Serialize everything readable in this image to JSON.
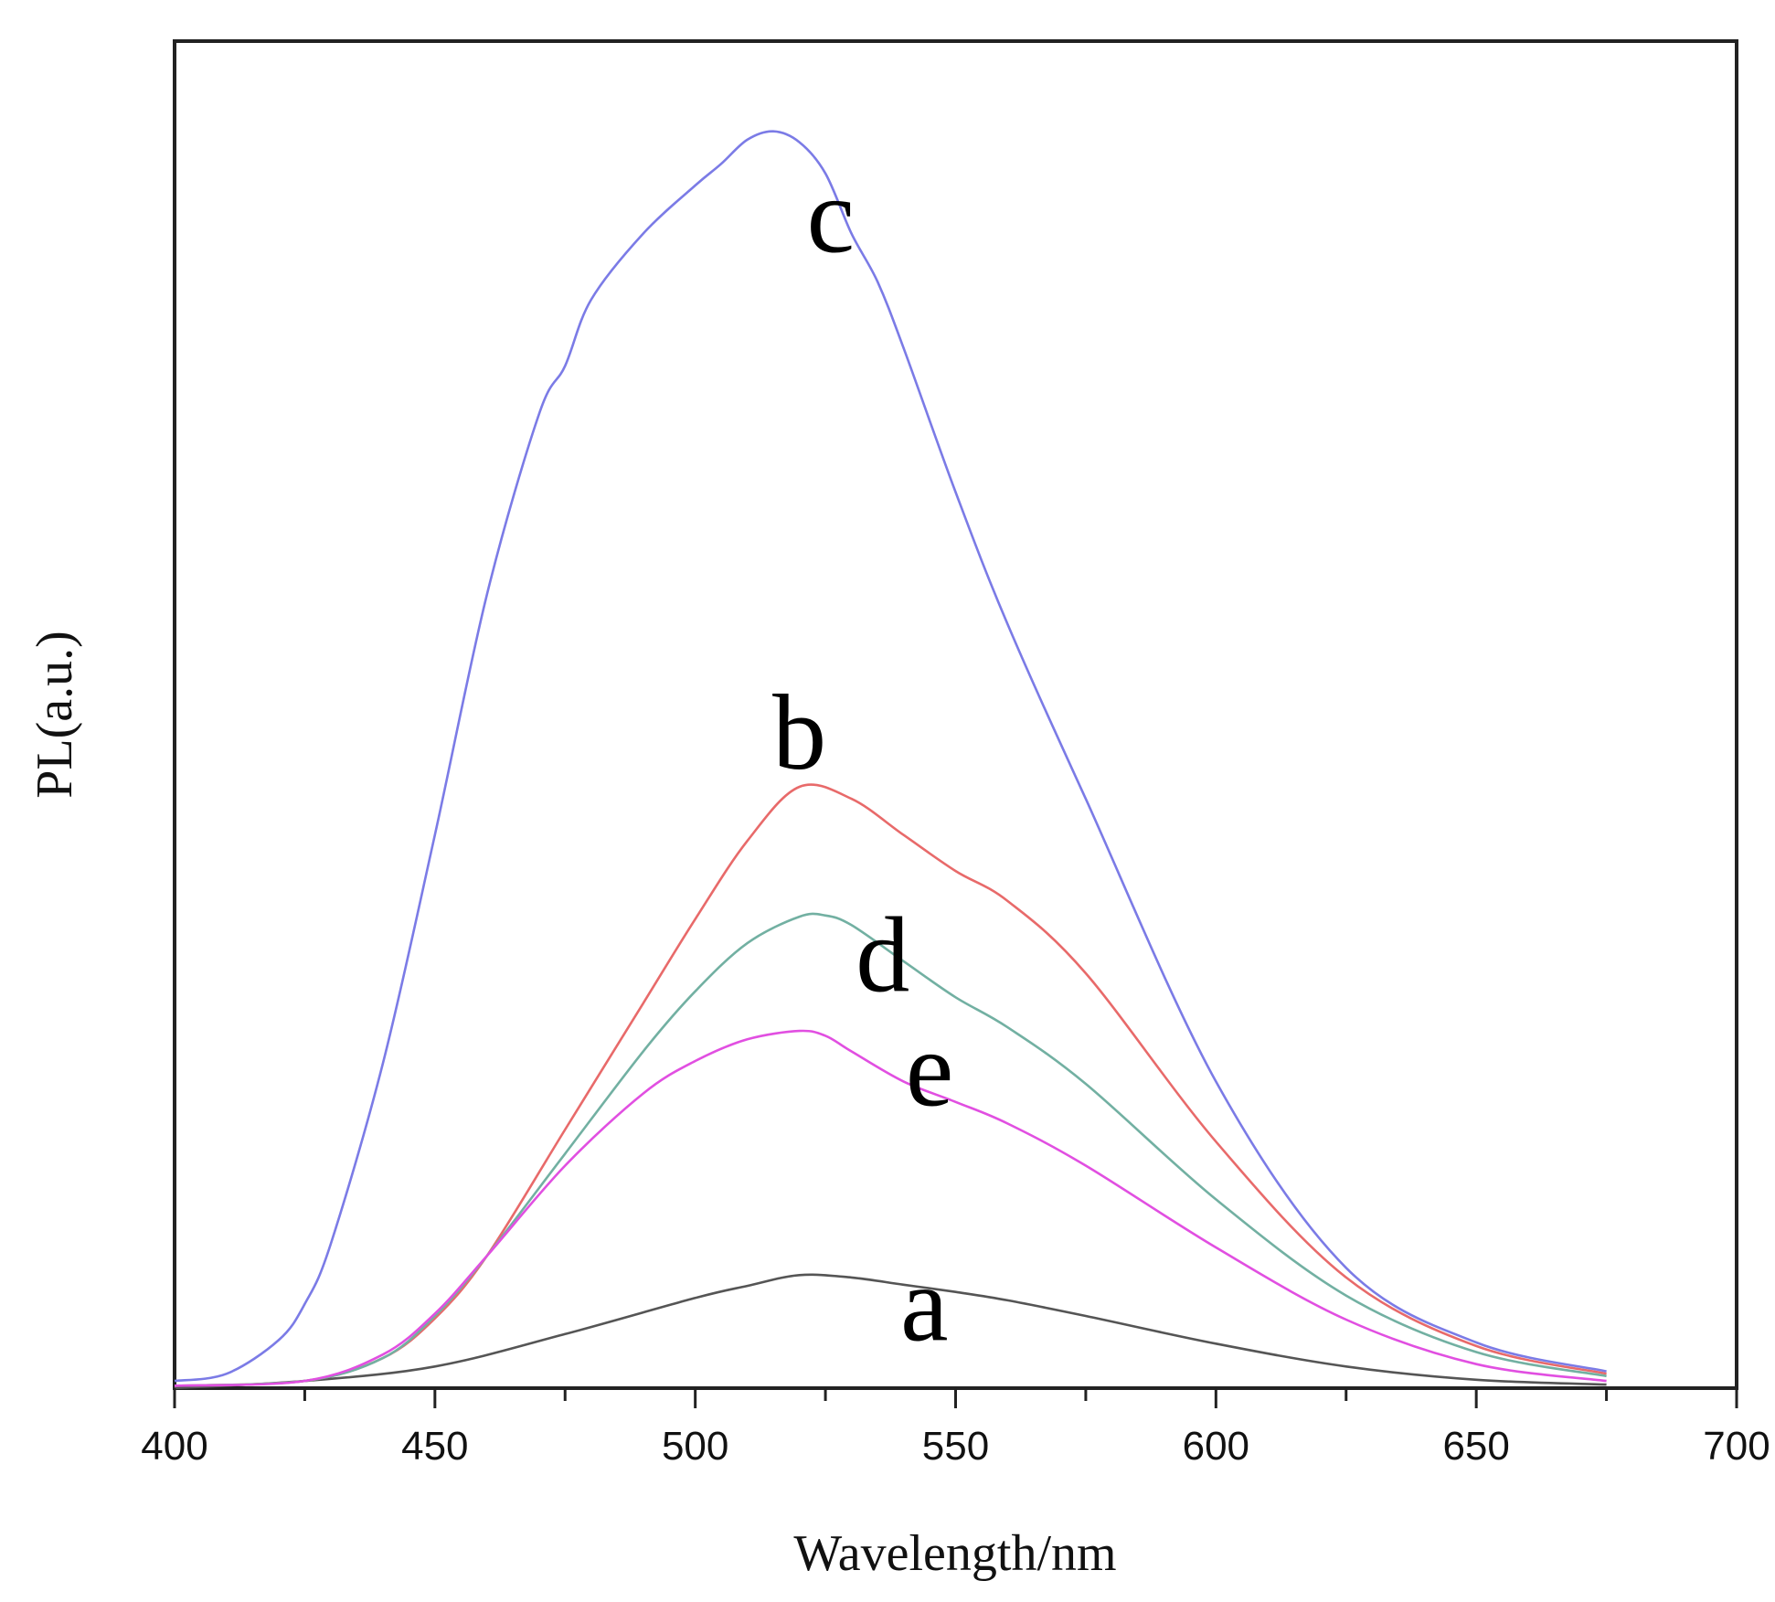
{
  "chart_data": {
    "type": "line",
    "title": "",
    "xlabel": "Wavelength/nm",
    "ylabel": "PL(a.u.)",
    "xlim": [
      400,
      700
    ],
    "ylim": [
      0,
      1.12
    ],
    "x_ticks": [
      400,
      450,
      500,
      550,
      600,
      650,
      700
    ],
    "x_minor_ticks": [
      425,
      475,
      525,
      575,
      625,
      675
    ],
    "y_ticks_shown": false,
    "grid": false,
    "legend": "none",
    "series": [
      {
        "name": "a",
        "color": "#555555",
        "x": [
          400,
          425,
          450,
          475,
          500,
          510,
          520,
          530,
          540,
          550,
          560,
          575,
          600,
          625,
          650,
          675
        ],
        "y": [
          0.0,
          0.006,
          0.018,
          0.045,
          0.075,
          0.085,
          0.094,
          0.092,
          0.086,
          0.08,
          0.073,
          0.06,
          0.037,
          0.018,
          0.007,
          0.003
        ]
      },
      {
        "name": "b",
        "color": "#e86a6a",
        "x": [
          400,
          425,
          440,
          450,
          460,
          475,
          490,
          500,
          510,
          520,
          530,
          540,
          550,
          560,
          575,
          600,
          625,
          650,
          675
        ],
        "y": [
          0.002,
          0.006,
          0.025,
          0.058,
          0.11,
          0.215,
          0.32,
          0.39,
          0.455,
          0.5,
          0.49,
          0.46,
          0.43,
          0.405,
          0.345,
          0.205,
          0.092,
          0.035,
          0.012
        ]
      },
      {
        "name": "c",
        "color": "#7b7be6",
        "x": [
          400,
          410,
          420,
          425,
          430,
          440,
          450,
          460,
          470,
          475,
          480,
          490,
          500,
          505,
          510,
          515,
          520,
          525,
          530,
          535,
          540,
          550,
          560,
          575,
          600,
          625,
          650,
          675
        ],
        "y": [
          0.006,
          0.012,
          0.04,
          0.07,
          0.12,
          0.27,
          0.46,
          0.66,
          0.81,
          0.85,
          0.905,
          0.96,
          1.0,
          1.018,
          1.038,
          1.045,
          1.036,
          1.01,
          0.96,
          0.92,
          0.865,
          0.745,
          0.635,
          0.49,
          0.255,
          0.1,
          0.038,
          0.014
        ]
      },
      {
        "name": "d",
        "color": "#72b0a2",
        "x": [
          400,
          425,
          440,
          450,
          460,
          475,
          490,
          500,
          510,
          520,
          525,
          530,
          540,
          550,
          560,
          575,
          600,
          625,
          650,
          675
        ],
        "y": [
          0.002,
          0.006,
          0.025,
          0.06,
          0.11,
          0.195,
          0.28,
          0.33,
          0.37,
          0.392,
          0.393,
          0.385,
          0.355,
          0.325,
          0.3,
          0.253,
          0.157,
          0.077,
          0.03,
          0.01
        ]
      },
      {
        "name": "e",
        "color": "#e14fe1",
        "x": [
          400,
          425,
          440,
          450,
          460,
          475,
          490,
          500,
          510,
          520,
          525,
          530,
          540,
          550,
          560,
          575,
          600,
          625,
          650,
          675
        ],
        "y": [
          0.002,
          0.006,
          0.028,
          0.062,
          0.11,
          0.185,
          0.245,
          0.272,
          0.29,
          0.297,
          0.293,
          0.28,
          0.255,
          0.238,
          0.22,
          0.185,
          0.117,
          0.057,
          0.02,
          0.006
        ]
      }
    ],
    "annotations": [
      {
        "text": "c",
        "x": 526,
        "y": 0.945
      },
      {
        "text": "b",
        "x": 520,
        "y": 0.515
      },
      {
        "text": "d",
        "x": 536,
        "y": 0.33
      },
      {
        "text": "e",
        "x": 545,
        "y": 0.235
      },
      {
        "text": "a",
        "x": 544,
        "y": 0.04
      }
    ]
  }
}
